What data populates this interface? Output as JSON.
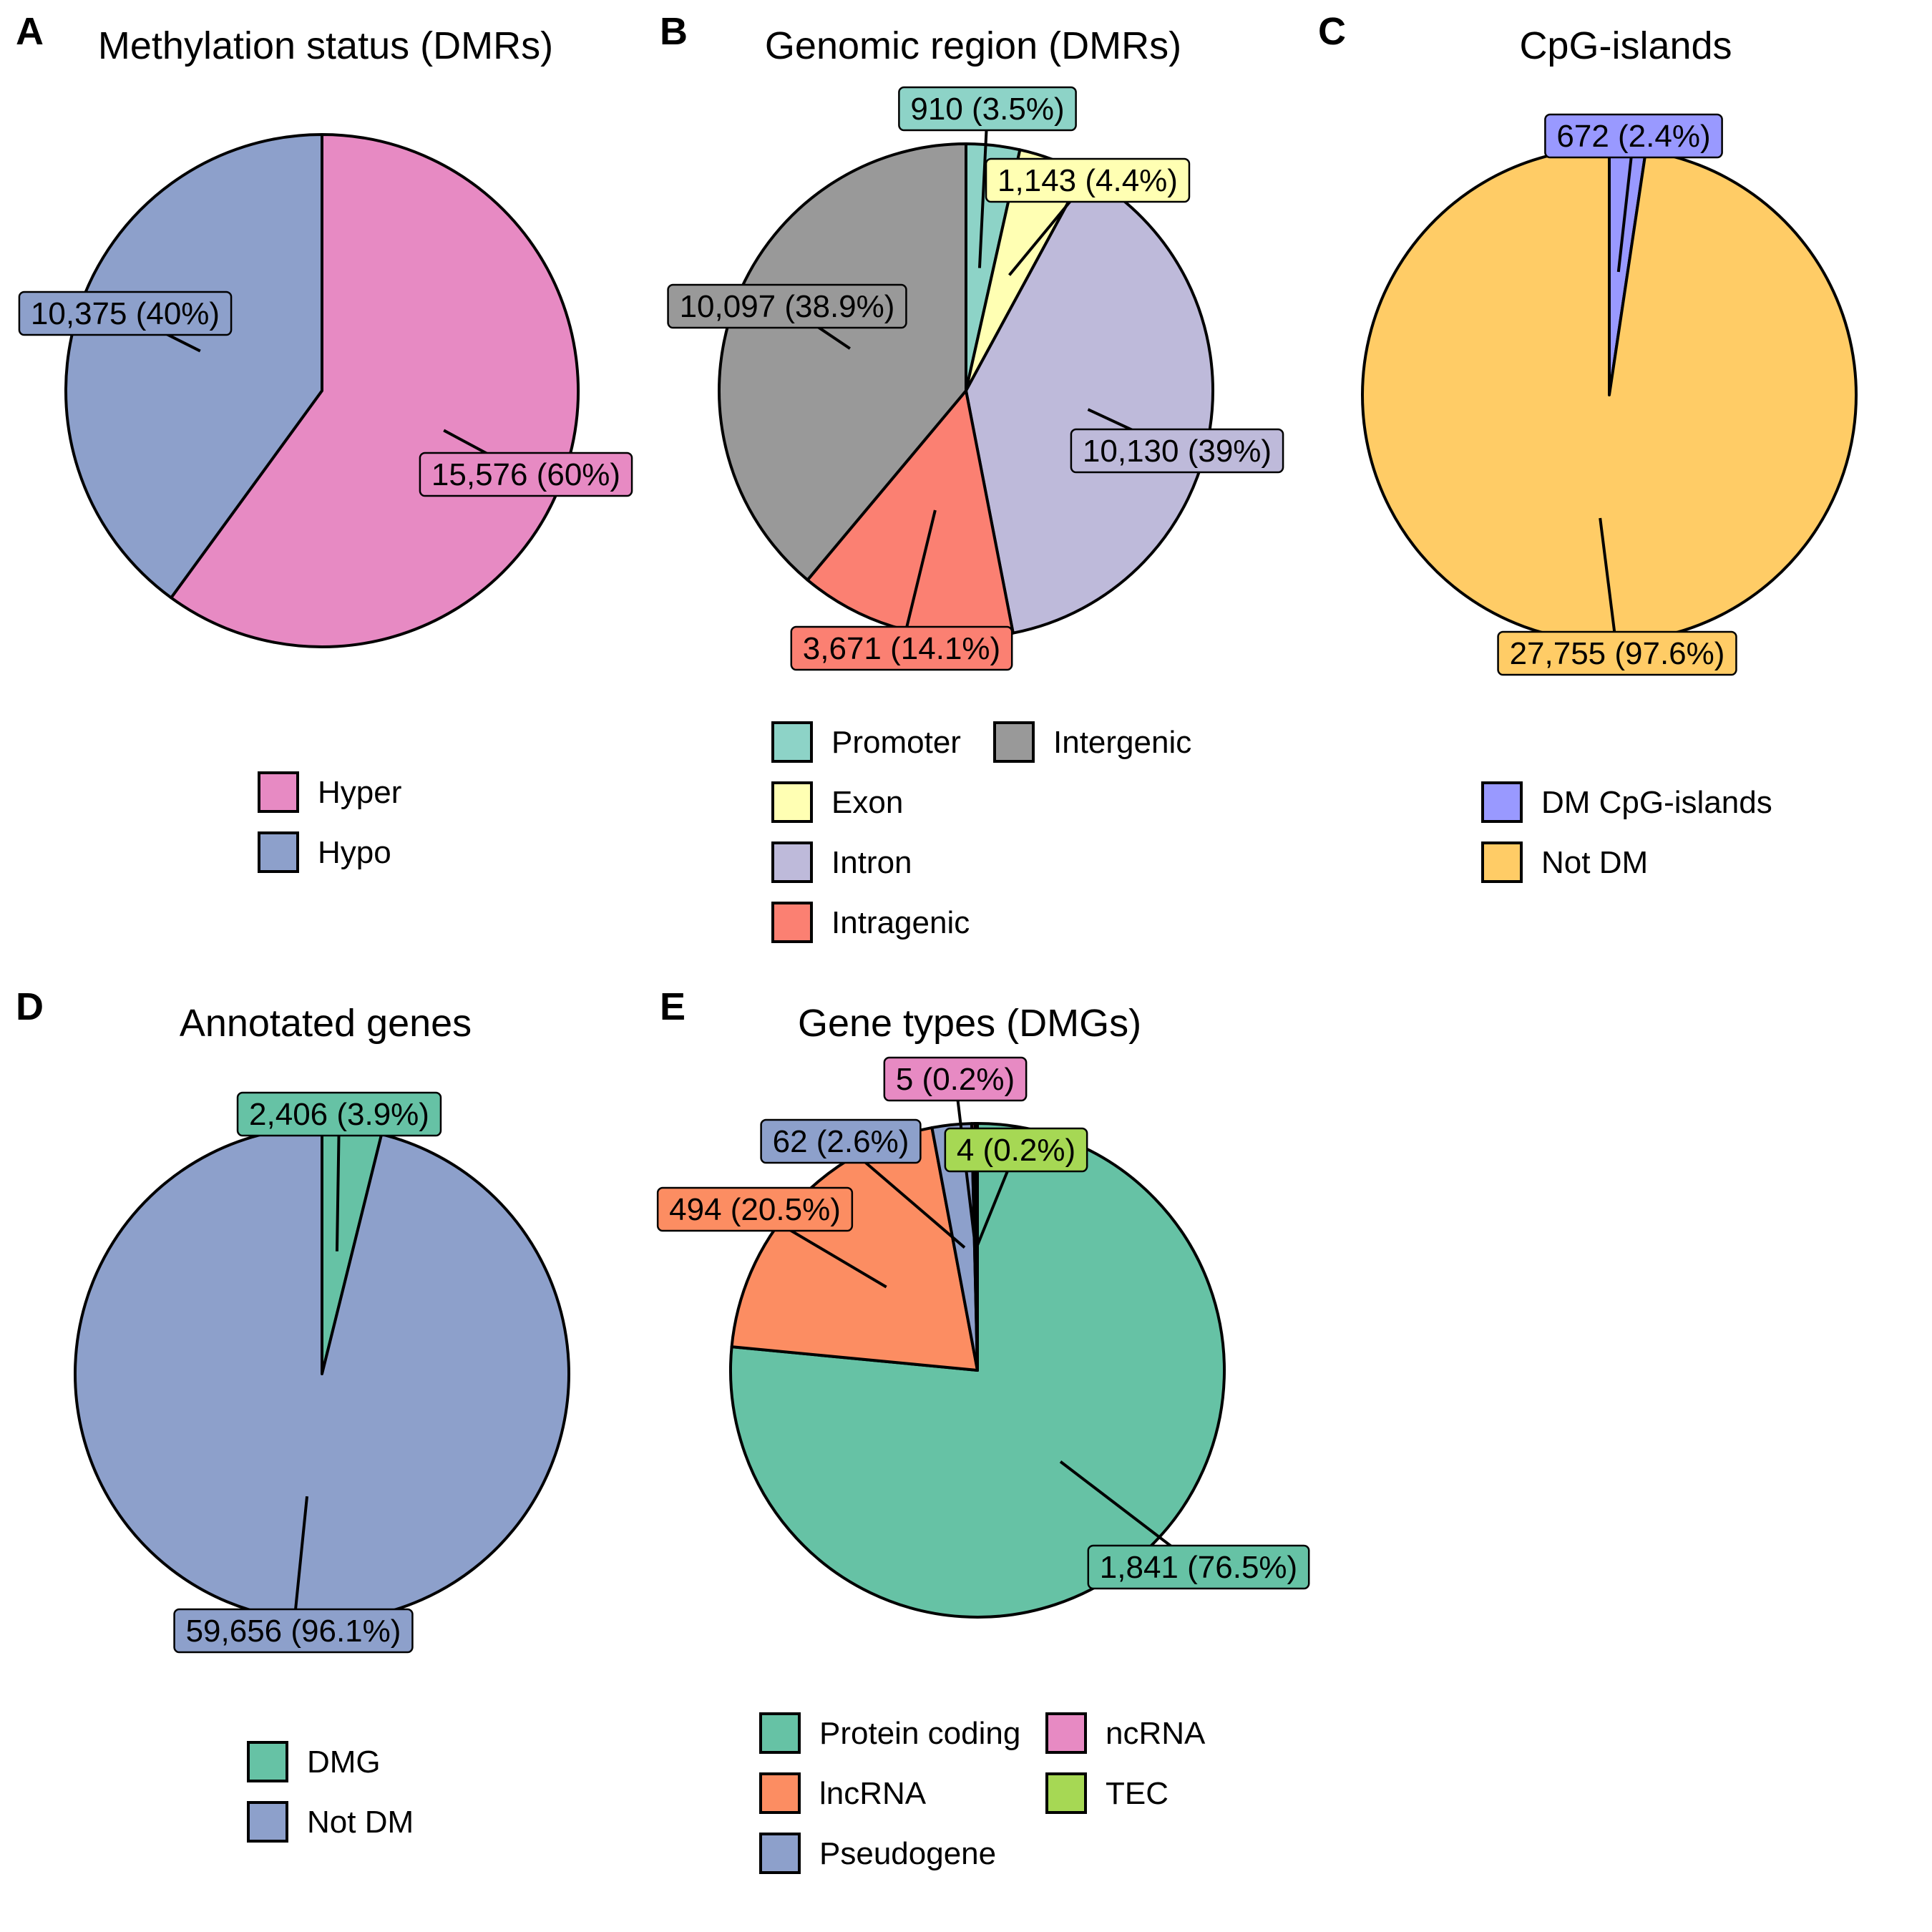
{
  "chart_data": [
    {
      "type": "pie",
      "panel": "A",
      "title": "Methylation status (DMRs)",
      "categories": [
        "Hyper",
        "Hypo"
      ],
      "values": [
        15576,
        10375
      ],
      "labels": [
        "15,576 (60%)",
        "10,375 (40%)"
      ],
      "colors": [
        "#E78AC3",
        "#8DA0CB"
      ],
      "legend": {
        "placement": "bottom",
        "columns": 1,
        "entries": [
          "Hyper",
          "Hypo"
        ]
      }
    },
    {
      "type": "pie",
      "panel": "B",
      "title": "Genomic region (DMRs)",
      "categories": [
        "Promoter",
        "Exon",
        "Intron",
        "Intragenic",
        "Intergenic"
      ],
      "values": [
        910,
        1143,
        10130,
        3671,
        10097
      ],
      "labels": [
        "910 (3.5%)",
        "1,143 (4.4%)",
        "10,130 (39%)",
        "3,671 (14.1%)",
        "10,097 (38.9%)"
      ],
      "colors": [
        "#8DD3C7",
        "#FFFFB3",
        "#BEBADA",
        "#FB8072",
        "#999999"
      ],
      "legend": {
        "placement": "bottom",
        "columns": 2,
        "entries": [
          "Promoter",
          "Exon",
          "Intron",
          "Intragenic",
          "Intergenic"
        ]
      }
    },
    {
      "type": "pie",
      "panel": "C",
      "title": "CpG-islands",
      "categories": [
        "DM CpG-islands",
        "Not DM"
      ],
      "values": [
        672,
        27755
      ],
      "labels": [
        "672 (2.4%)",
        "27,755 (97.6%)"
      ],
      "colors": [
        "#9999FF",
        "#FFCC66"
      ],
      "legend": {
        "placement": "bottom",
        "columns": 1,
        "entries": [
          "DM CpG-islands",
          "Not DM"
        ]
      }
    },
    {
      "type": "pie",
      "panel": "D",
      "title": "Annotated genes",
      "categories": [
        "DMG",
        "Not DM"
      ],
      "values": [
        2406,
        59656
      ],
      "labels": [
        "2,406 (3.9%)",
        "59,656 (96.1%)"
      ],
      "colors": [
        "#66C2A5",
        "#8DA0CB"
      ],
      "legend": {
        "placement": "bottom",
        "columns": 1,
        "entries": [
          "DMG",
          "Not DM"
        ]
      }
    },
    {
      "type": "pie",
      "panel": "E",
      "title": "Gene types (DMGs)",
      "categories": [
        "Protein coding",
        "lncRNA",
        "Pseudogene",
        "ncRNA",
        "TEC"
      ],
      "values": [
        1841,
        494,
        62,
        5,
        4
      ],
      "labels": [
        "1,841 (76.5%)",
        "494 (20.5%)",
        "62 (2.6%)",
        "5 (0.2%)",
        "4 (0.2%)"
      ],
      "colors": [
        "#66C2A5",
        "#FC8D62",
        "#8DA0CB",
        "#E78AC3",
        "#A6D854"
      ],
      "legend": {
        "placement": "bottom",
        "columns": 2,
        "entries": [
          "Protein coding",
          "lncRNA",
          "Pseudogene",
          "ncRNA",
          "TEC"
        ]
      }
    }
  ]
}
